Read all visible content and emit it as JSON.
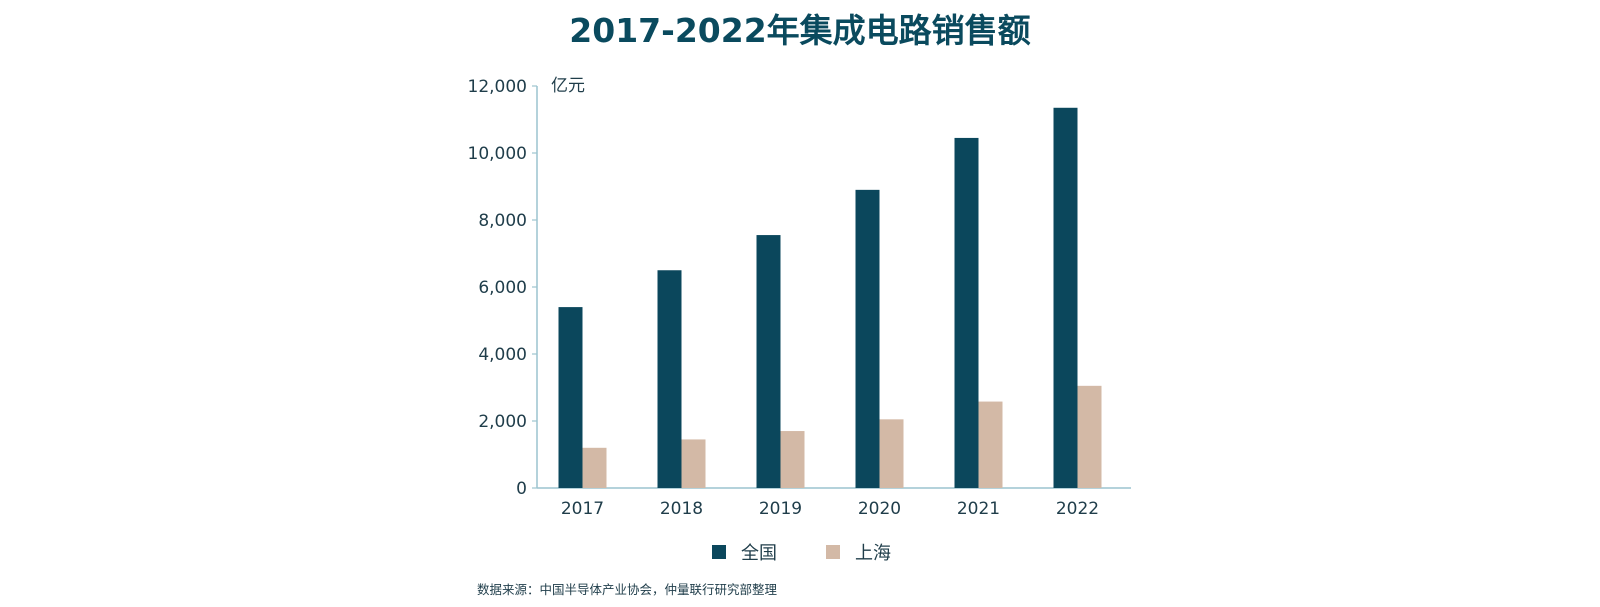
{
  "chart_data": {
    "type": "bar",
    "title": "2017-2022年集成电路销售额",
    "unit_label": "亿元",
    "categories": [
      "2017",
      "2018",
      "2019",
      "2020",
      "2021",
      "2022"
    ],
    "series": [
      {
        "name": "全国",
        "color": "#0b475c",
        "values": [
          5400,
          6500,
          7550,
          8900,
          10450,
          11350
        ]
      },
      {
        "name": "上海",
        "color": "#d3b9a6",
        "values": [
          1200,
          1450,
          1700,
          2050,
          2580,
          3050
        ]
      }
    ],
    "ylim": [
      0,
      12000
    ],
    "yticks": [
      0,
      2000,
      4000,
      6000,
      8000,
      10000,
      12000
    ],
    "ytick_labels": [
      "0",
      "2,000",
      "4,000",
      "6,000",
      "8,000",
      "10,000",
      "12,000"
    ],
    "grid": false,
    "legend_position": "bottom-center",
    "axis_color": "#9cc4cf",
    "source": "数据来源：中国半导体产业协会，仲量联行研究部整理"
  }
}
